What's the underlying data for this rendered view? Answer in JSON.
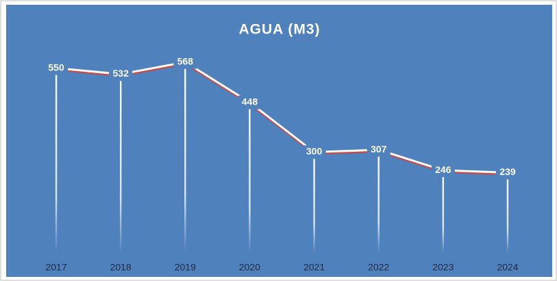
{
  "chart_data": {
    "type": "line",
    "title": "AGUA (M3)",
    "categories": [
      "2017",
      "2018",
      "2019",
      "2020",
      "2021",
      "2022",
      "2023",
      "2024"
    ],
    "series": [
      {
        "name": "AGUA (M3)",
        "color": "#ffffff",
        "values": [
          550,
          532,
          568,
          448,
          300,
          307,
          246,
          239
        ]
      }
    ],
    "ylim": [
      0,
      600
    ],
    "drop_lines": true
  }
}
